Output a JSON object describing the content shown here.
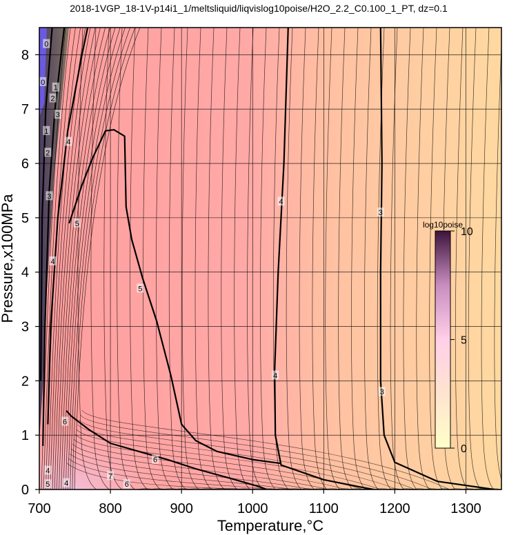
{
  "chart_data": {
    "type": "heatmap",
    "title": "2018-1VGP_18-1V-p14i1_1/meltsliquid/liqvislog10poise/H2O_2.2_C0.100_1_PT, dz=0.1",
    "xlabel": "Temperature,°C",
    "ylabel": "Pressure,x100MPa",
    "xlim": [
      700,
      1350
    ],
    "ylim": [
      0,
      8.5
    ],
    "xticks": [
      "700",
      "800",
      "900",
      "1000",
      "1100",
      "1200",
      "1300"
    ],
    "xtick_values": [
      700,
      800,
      900,
      1000,
      1100,
      1200,
      1300
    ],
    "yticks": [
      "0",
      "1",
      "2",
      "3",
      "4",
      "5",
      "6",
      "7",
      "8"
    ],
    "ytick_values": [
      0,
      1,
      2,
      3,
      4,
      5,
      6,
      7,
      8
    ],
    "grid": true,
    "colorbar": {
      "title": "log10poise",
      "range": [
        0,
        10
      ],
      "tick_labels": [
        "0",
        "5",
        "10"
      ],
      "tick_values": [
        0,
        5,
        10
      ],
      "colors": [
        "#ffffc8",
        "#ffd2dc",
        "#ffc8ff",
        "#9b6496",
        "#3c143c"
      ]
    },
    "field_colors": {
      "low_T_corner": "#3a3a5a",
      "mid_left": "#ff9e9e",
      "center": "#ffaaa6",
      "right": "#ffd49e",
      "lower_left_high": "#e8b4d0"
    },
    "contours": [
      {
        "level": "5",
        "style": "bold",
        "points": [
          [
            742,
            4.9
          ],
          [
            760,
            5.6
          ],
          [
            775,
            6.1
          ],
          [
            793,
            6.6
          ],
          [
            805,
            6.62
          ],
          [
            820,
            6.5
          ],
          [
            822,
            5.2
          ],
          [
            830,
            4.6
          ],
          [
            845,
            3.9
          ],
          [
            865,
            3.1
          ],
          [
            885,
            2.1
          ],
          [
            900,
            1.2
          ],
          [
            920,
            0.9
          ],
          [
            950,
            0.7
          ],
          [
            1000,
            0.55
          ],
          [
            1040,
            0.48
          ]
        ]
      },
      {
        "level": "4",
        "style": "bold",
        "points": [
          [
            1050,
            8.5
          ],
          [
            1044,
            6.0
          ],
          [
            1036,
            4.0
          ],
          [
            1031,
            2.2
          ],
          [
            1032,
            1.0
          ],
          [
            1040,
            0.45
          ],
          [
            1100,
            0.18
          ],
          [
            1150,
            0.05
          ],
          [
            1170,
            0.0
          ]
        ]
      },
      {
        "level": "3",
        "style": "bold",
        "points": [
          [
            1180,
            8.5
          ],
          [
            1182,
            6.0
          ],
          [
            1180,
            4.0
          ],
          [
            1180,
            2.0
          ],
          [
            1185,
            1.0
          ],
          [
            1200,
            0.5
          ],
          [
            1260,
            0.15
          ],
          [
            1340,
            0.0
          ]
        ]
      },
      {
        "level": "6",
        "style": "bold",
        "points": [
          [
            738,
            1.45
          ],
          [
            745,
            1.35
          ],
          [
            770,
            1.1
          ],
          [
            800,
            0.85
          ],
          [
            840,
            0.7
          ],
          [
            880,
            0.55
          ],
          [
            920,
            0.38
          ],
          [
            970,
            0.2
          ],
          [
            1010,
            0.05
          ],
          [
            1020,
            0.0
          ]
        ]
      },
      {
        "level": "4",
        "style": "bold",
        "points": [
          [
            712,
            1.2
          ],
          [
            716,
            3.0
          ],
          [
            726,
            5.0
          ],
          [
            740,
            6.6
          ],
          [
            760,
            8.0
          ],
          [
            768,
            8.5
          ]
        ]
      },
      {
        "level": "3",
        "style": "bold",
        "points": [
          [
            705,
            0.8
          ],
          [
            708,
            3.0
          ],
          [
            714,
            5.5
          ],
          [
            722,
            7.0
          ],
          [
            735,
            8.5
          ]
        ]
      },
      {
        "level": "2",
        "style": "bold",
        "points": [
          [
            702,
            2.0
          ],
          [
            704,
            5.0
          ],
          [
            709,
            7.0
          ],
          [
            718,
            8.5
          ]
        ]
      }
    ],
    "contour_labels": [
      {
        "text": "0",
        "x": 710,
        "y": 8.2
      },
      {
        "text": "0",
        "x": 705,
        "y": 7.5
      },
      {
        "text": "1",
        "x": 723,
        "y": 7.4
      },
      {
        "text": "2",
        "x": 719,
        "y": 7.2
      },
      {
        "text": "3",
        "x": 726,
        "y": 6.9
      },
      {
        "text": "1",
        "x": 710,
        "y": 6.6
      },
      {
        "text": "4",
        "x": 741,
        "y": 6.4
      },
      {
        "text": "2",
        "x": 712,
        "y": 6.2
      },
      {
        "text": "3",
        "x": 714,
        "y": 5.4
      },
      {
        "text": "5",
        "x": 753,
        "y": 4.9
      },
      {
        "text": "4",
        "x": 719,
        "y": 4.2
      },
      {
        "text": "5",
        "x": 842,
        "y": 3.7
      },
      {
        "text": "4",
        "x": 1040,
        "y": 5.3
      },
      {
        "text": "3",
        "x": 1180,
        "y": 5.1
      },
      {
        "text": "4",
        "x": 1032,
        "y": 2.1
      },
      {
        "text": "3",
        "x": 1182,
        "y": 1.8
      },
      {
        "text": "6",
        "x": 736,
        "y": 1.25
      },
      {
        "text": "6",
        "x": 863,
        "y": 0.55
      },
      {
        "text": "4",
        "x": 712,
        "y": 0.35
      },
      {
        "text": "5",
        "x": 712,
        "y": 0.1
      },
      {
        "text": "4",
        "x": 738,
        "y": 0.12
      },
      {
        "text": "7",
        "x": 800,
        "y": 0.25
      },
      {
        "text": "6",
        "x": 823,
        "y": 0.1
      }
    ]
  }
}
